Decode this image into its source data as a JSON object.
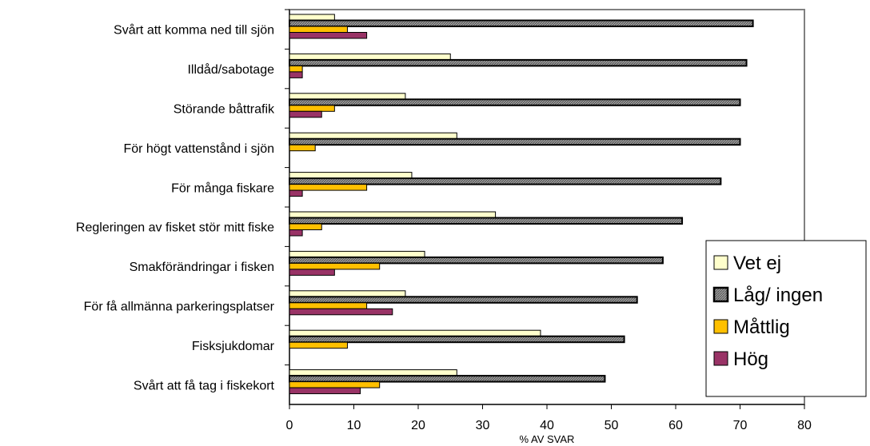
{
  "chart_data": {
    "type": "bar",
    "orientation": "horizontal",
    "categories": [
      "Svårt att komma ned till sjön",
      "Illdåd/sabotage",
      "Störande båttrafik",
      "För högt vattenstånd i sjön",
      "För många fiskare",
      "Regleringen av fisket stör mitt fiske",
      "Smakförändringar i fisken",
      "För få allmänna parkeringsplatser",
      "Fisksjukdomar",
      "Svårt att få tag i fiskekort"
    ],
    "series": [
      {
        "name": "Vet ej",
        "color": "#ffffcc",
        "pattern": "solid",
        "values": [
          7,
          25,
          18,
          26,
          19,
          32,
          21,
          18,
          39,
          26
        ]
      },
      {
        "name": "Låg/ ingen",
        "color": "#808080",
        "pattern": "hatched",
        "values": [
          72,
          71,
          70,
          70,
          67,
          61,
          58,
          54,
          52,
          49
        ]
      },
      {
        "name": "Måttlig",
        "color": "#ffc000",
        "pattern": "solid",
        "values": [
          9,
          2,
          7,
          4,
          12,
          5,
          14,
          12,
          9,
          14
        ]
      },
      {
        "name": "Hög",
        "color": "#993366",
        "pattern": "solid",
        "values": [
          12,
          2,
          5,
          0,
          2,
          2,
          7,
          16,
          0,
          11
        ]
      }
    ],
    "xlabel": "% AV SVAR",
    "xlim": [
      0,
      80
    ],
    "xticks": [
      "0",
      "10",
      "20",
      "30",
      "40",
      "50",
      "60",
      "70",
      "80"
    ],
    "grid": false,
    "legend_position": "right"
  }
}
